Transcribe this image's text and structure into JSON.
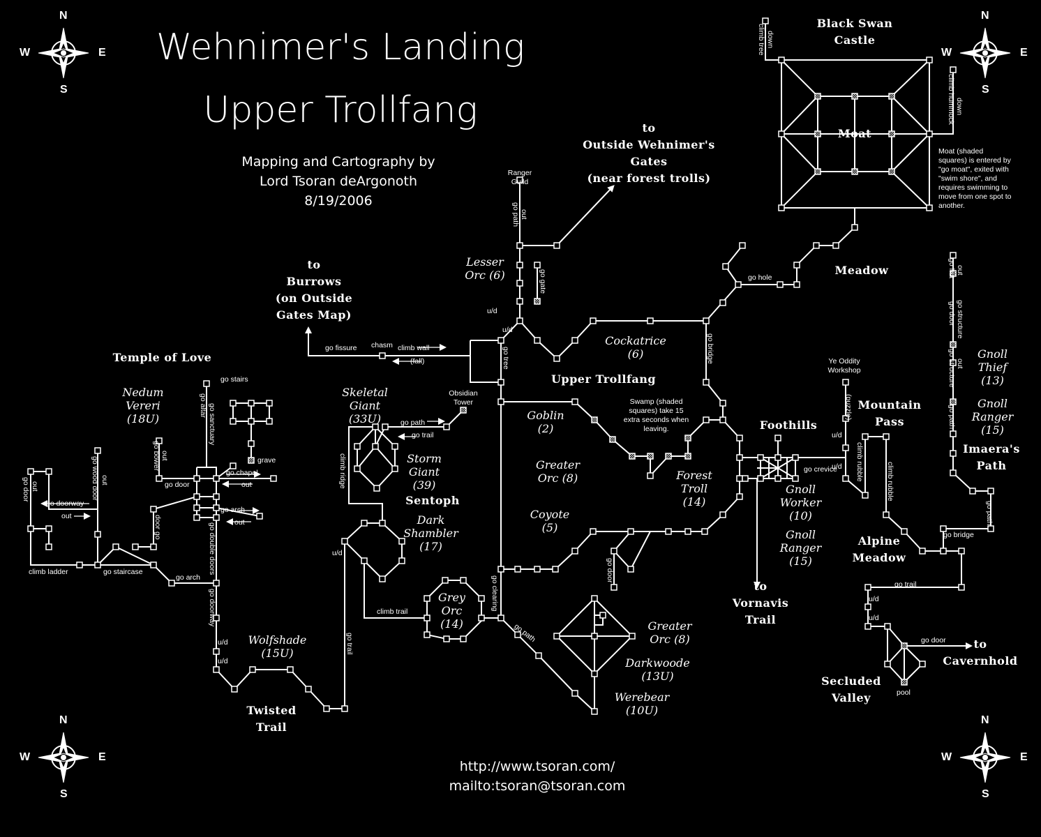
{
  "title": {
    "line1": "Wehnimer's Landing",
    "line2": "Upper Trollfang"
  },
  "credit": {
    "line1": "Mapping and Cartography by",
    "line2": "Lord Tsoran deArgonoth",
    "line3": "8/19/2006"
  },
  "links": {
    "web": "http://www.tsoran.com/",
    "mail": "mailto:tsoran@tsoran.com"
  },
  "compass": {
    "n": "N",
    "s": "S",
    "e": "E",
    "w": "W"
  },
  "areas": {
    "black_swan_1": "Black Swan",
    "black_swan_2": "Castle",
    "moat": "Moat",
    "meadow": "Meadow",
    "to_outside_1": "to",
    "to_outside_2": "Outside Wehnimer's",
    "to_outside_3": "Gates",
    "to_outside_4": "(near forest trolls)",
    "to_burrows_1": "to",
    "to_burrows_2": "Burrows",
    "to_burrows_3": "(on Outside",
    "to_burrows_4": "Gates Map)",
    "temple": "Temple of Love",
    "upper_trollfang": "Upper Trollfang",
    "sentoph": "Sentoph",
    "foothills": "Foothills",
    "mountain_1": "Mountain",
    "mountain_2": "Pass",
    "imaera_1": "Imaera's",
    "imaera_2": "Path",
    "alpine_1": "Alpine",
    "alpine_2": "Meadow",
    "to_vornavis_1": "to",
    "to_vornavis_2": "Vornavis",
    "to_vornavis_3": "Trail",
    "to_cavernhold_1": "to",
    "to_cavernhold_2": "Cavernhold",
    "secluded_1": "Secluded",
    "secluded_2": "Valley",
    "twisted_1": "Twisted",
    "twisted_2": "Trail"
  },
  "mobs": {
    "lesser_orc_1": "Lesser",
    "lesser_orc_2": "Orc (6)",
    "cockatrice_1": "Cockatrice",
    "cockatrice_2": "(6)",
    "nedum_1": "Nedum",
    "nedum_2": "Vereri",
    "nedum_3": "(18U)",
    "skeletal_1": "Skeletal",
    "skeletal_2": "Giant",
    "skeletal_3": "(33U)",
    "storm_1": "Storm",
    "storm_2": "Giant",
    "storm_3": "(39)",
    "goblin_1": "Goblin",
    "goblin_2": "(2)",
    "greater_orc_1": "Greater",
    "greater_orc_2": "Orc (8)",
    "forest_troll_1": "Forest",
    "forest_troll_2": "Troll",
    "forest_troll_3": "(14)",
    "coyote_1": "Coyote",
    "coyote_2": "(5)",
    "dark_1": "Dark",
    "dark_2": "Shambler",
    "dark_3": "(17)",
    "grey_orc_1": "Grey",
    "grey_orc_2": "Orc",
    "grey_orc_3": "(14)",
    "wolfshade_1": "Wolfshade",
    "wolfshade_2": "(15U)",
    "greater_orc2_1": "Greater",
    "greater_orc2_2": "Orc (8)",
    "darkwoode_1": "Darkwoode",
    "darkwoode_2": "(13U)",
    "werebear_1": "Werebear",
    "werebear_2": "(10U)",
    "gnoll_worker_1": "Gnoll",
    "gnoll_worker_2": "Worker",
    "gnoll_worker_3": "(10)",
    "gnoll_ranger_1": "Gnoll",
    "gnoll_ranger_2": "Ranger",
    "gnoll_ranger_3": "(15)",
    "gnoll_thief_1": "Gnoll",
    "gnoll_thief_2": "Thief",
    "gnoll_thief_3": "(13)",
    "gnoll_ranger2_1": "Gnoll",
    "gnoll_ranger2_2": "Ranger",
    "gnoll_ranger2_3": "(15)"
  },
  "notes": {
    "moat_note": [
      "Moat (shaded",
      "squares) is entered by",
      "\"go moat\", exited with",
      "\"swim shore\", and",
      "requires swimming to",
      "move from one spot to",
      "another."
    ],
    "swamp_note": [
      "Swamp (shaded",
      "squares) take 15",
      "extra seconds when",
      "leaving."
    ],
    "ranger_guild": [
      "Ranger",
      "Guild"
    ],
    "obsidian_tower": [
      "Obsidian",
      "Tower"
    ],
    "oddity": [
      "Ye Oddity",
      "Workshop"
    ]
  },
  "commands": {
    "go_fissure": "go fissure",
    "chasm": "chasm",
    "climb_wall": "climb wall",
    "fall": "(fall)",
    "ud1": "u/d",
    "ud2": "u/d",
    "go_hole": "go hole",
    "go_stairs": "go stairs",
    "grave": "grave",
    "go_chapel": "go chapel",
    "out1": "out",
    "go_arch1": "go arch",
    "out2": "out",
    "go_door1": "go door",
    "go_doorway": "go doorway",
    "out3": "out",
    "climb_ladder": "climb ladder",
    "go_staircase": "go staircase",
    "go_arch2": "go arch",
    "go_path1": "go path",
    "go_trail1": "go trail",
    "ud3": "u/d",
    "climb_trail": "climb trail",
    "ud4": "u/d",
    "ud5": "u/d",
    "go_crevice": "go crevice",
    "ud6": "u/d",
    "ud7": "u/d",
    "go_bridge1": "go bridge",
    "go_trail2": "go trail",
    "ud8": "u/d",
    "ud9": "u/d",
    "go_door2": "go door",
    "pool": "pool",
    "v_climb_tree": "climb tree",
    "v_down1": "down",
    "v_climb_hummock": "climb hummock",
    "v_down2": "down",
    "v_go_path": "go path",
    "v_out1": "out",
    "v_go_gate": "go gate",
    "v_go_tree": "go tree",
    "v_go_bridge": "go bridge",
    "v_go_altar": "go altar",
    "v_go_sanctuary": "go sanctuary",
    "v_go_bower": "go bower",
    "v_out2": "out",
    "v_go_door": "go door",
    "v_go_wood_door": "go wood door",
    "v_out3": "out",
    "v_door": "door",
    "v_go": "go",
    "v_go_double_doors": "go double doors",
    "v_go_doorway": "go doorway",
    "v_climb_ridge": "climb ridge",
    "v_go_trail": "go trail",
    "v_go_clearing": "go clearing",
    "v_go_path2": "go path",
    "v_go_door2": "go door",
    "v_puzzle": "(puzzle)",
    "v_climb_rubble1": "climb rubble",
    "v_climb_rubble2": "climb rubble",
    "v_go_hut": "go hut",
    "v_out4": "out",
    "v_go_door3": "go door",
    "v_go_structure1": "go structure",
    "v_go_structure2": "go structure",
    "v_out5": "out",
    "v_go_path3": "go path",
    "v_go_path4": "go path"
  }
}
